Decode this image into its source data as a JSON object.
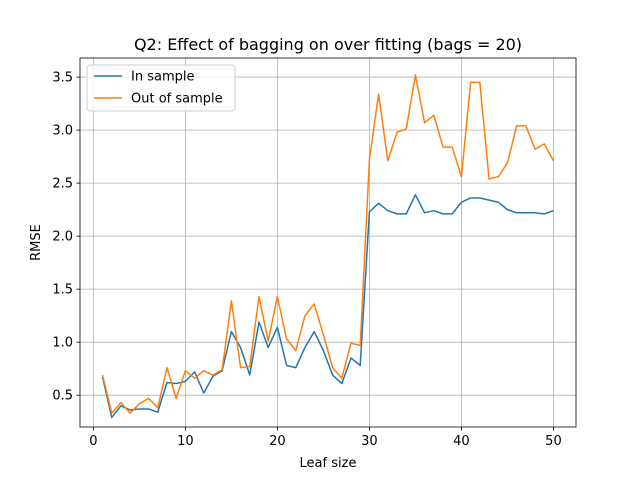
{
  "chart_data": {
    "type": "line",
    "title": "Q2: Effect of bagging on over fitting (bags = 20)",
    "xlabel": "Leaf size",
    "ylabel": "RMSE",
    "xlim": [
      -1.45,
      52.45
    ],
    "ylim": [
      0.2,
      3.68
    ],
    "xticks": [
      0,
      10,
      20,
      30,
      40,
      50
    ],
    "yticks": [
      0.5,
      1.0,
      1.5,
      2.0,
      2.5,
      3.0,
      3.5
    ],
    "ytick_labels": [
      "0.5",
      "1.0",
      "1.5",
      "2.0",
      "2.5",
      "3.0",
      "3.5"
    ],
    "grid": true,
    "legend_position": "top-left",
    "x": [
      1,
      2,
      3,
      4,
      5,
      6,
      7,
      8,
      9,
      10,
      11,
      12,
      13,
      14,
      15,
      16,
      17,
      18,
      19,
      20,
      21,
      22,
      23,
      24,
      25,
      26,
      27,
      28,
      29,
      30,
      31,
      32,
      33,
      34,
      35,
      36,
      37,
      38,
      39,
      40,
      41,
      42,
      43,
      44,
      45,
      46,
      47,
      48,
      49,
      50
    ],
    "series": [
      {
        "name": "In sample",
        "color": "#1f77b4",
        "values": [
          0.67,
          0.29,
          0.4,
          0.36,
          0.37,
          0.37,
          0.34,
          0.62,
          0.61,
          0.63,
          0.72,
          0.52,
          0.68,
          0.73,
          1.1,
          0.95,
          0.69,
          1.19,
          0.95,
          1.14,
          0.78,
          0.76,
          0.95,
          1.1,
          0.92,
          0.69,
          0.61,
          0.85,
          0.78,
          2.23,
          2.31,
          2.24,
          2.21,
          2.21,
          2.39,
          2.22,
          2.24,
          2.21,
          2.21,
          2.32,
          2.36,
          2.36,
          2.34,
          2.32,
          2.25,
          2.22,
          2.22,
          2.22,
          2.21,
          2.24
        ]
      },
      {
        "name": "Out of sample",
        "color": "#ff7f0e",
        "values": [
          0.69,
          0.33,
          0.43,
          0.33,
          0.42,
          0.47,
          0.38,
          0.76,
          0.47,
          0.73,
          0.66,
          0.73,
          0.69,
          0.74,
          1.39,
          0.76,
          0.77,
          1.43,
          1.01,
          1.43,
          1.03,
          0.92,
          1.25,
          1.36,
          1.07,
          0.76,
          0.66,
          0.99,
          0.97,
          2.72,
          3.34,
          2.71,
          2.98,
          3.01,
          3.52,
          3.07,
          3.14,
          2.84,
          2.84,
          2.56,
          3.45,
          3.45,
          2.54,
          2.56,
          2.69,
          3.04,
          3.04,
          2.82,
          2.87,
          2.71
        ]
      }
    ]
  }
}
